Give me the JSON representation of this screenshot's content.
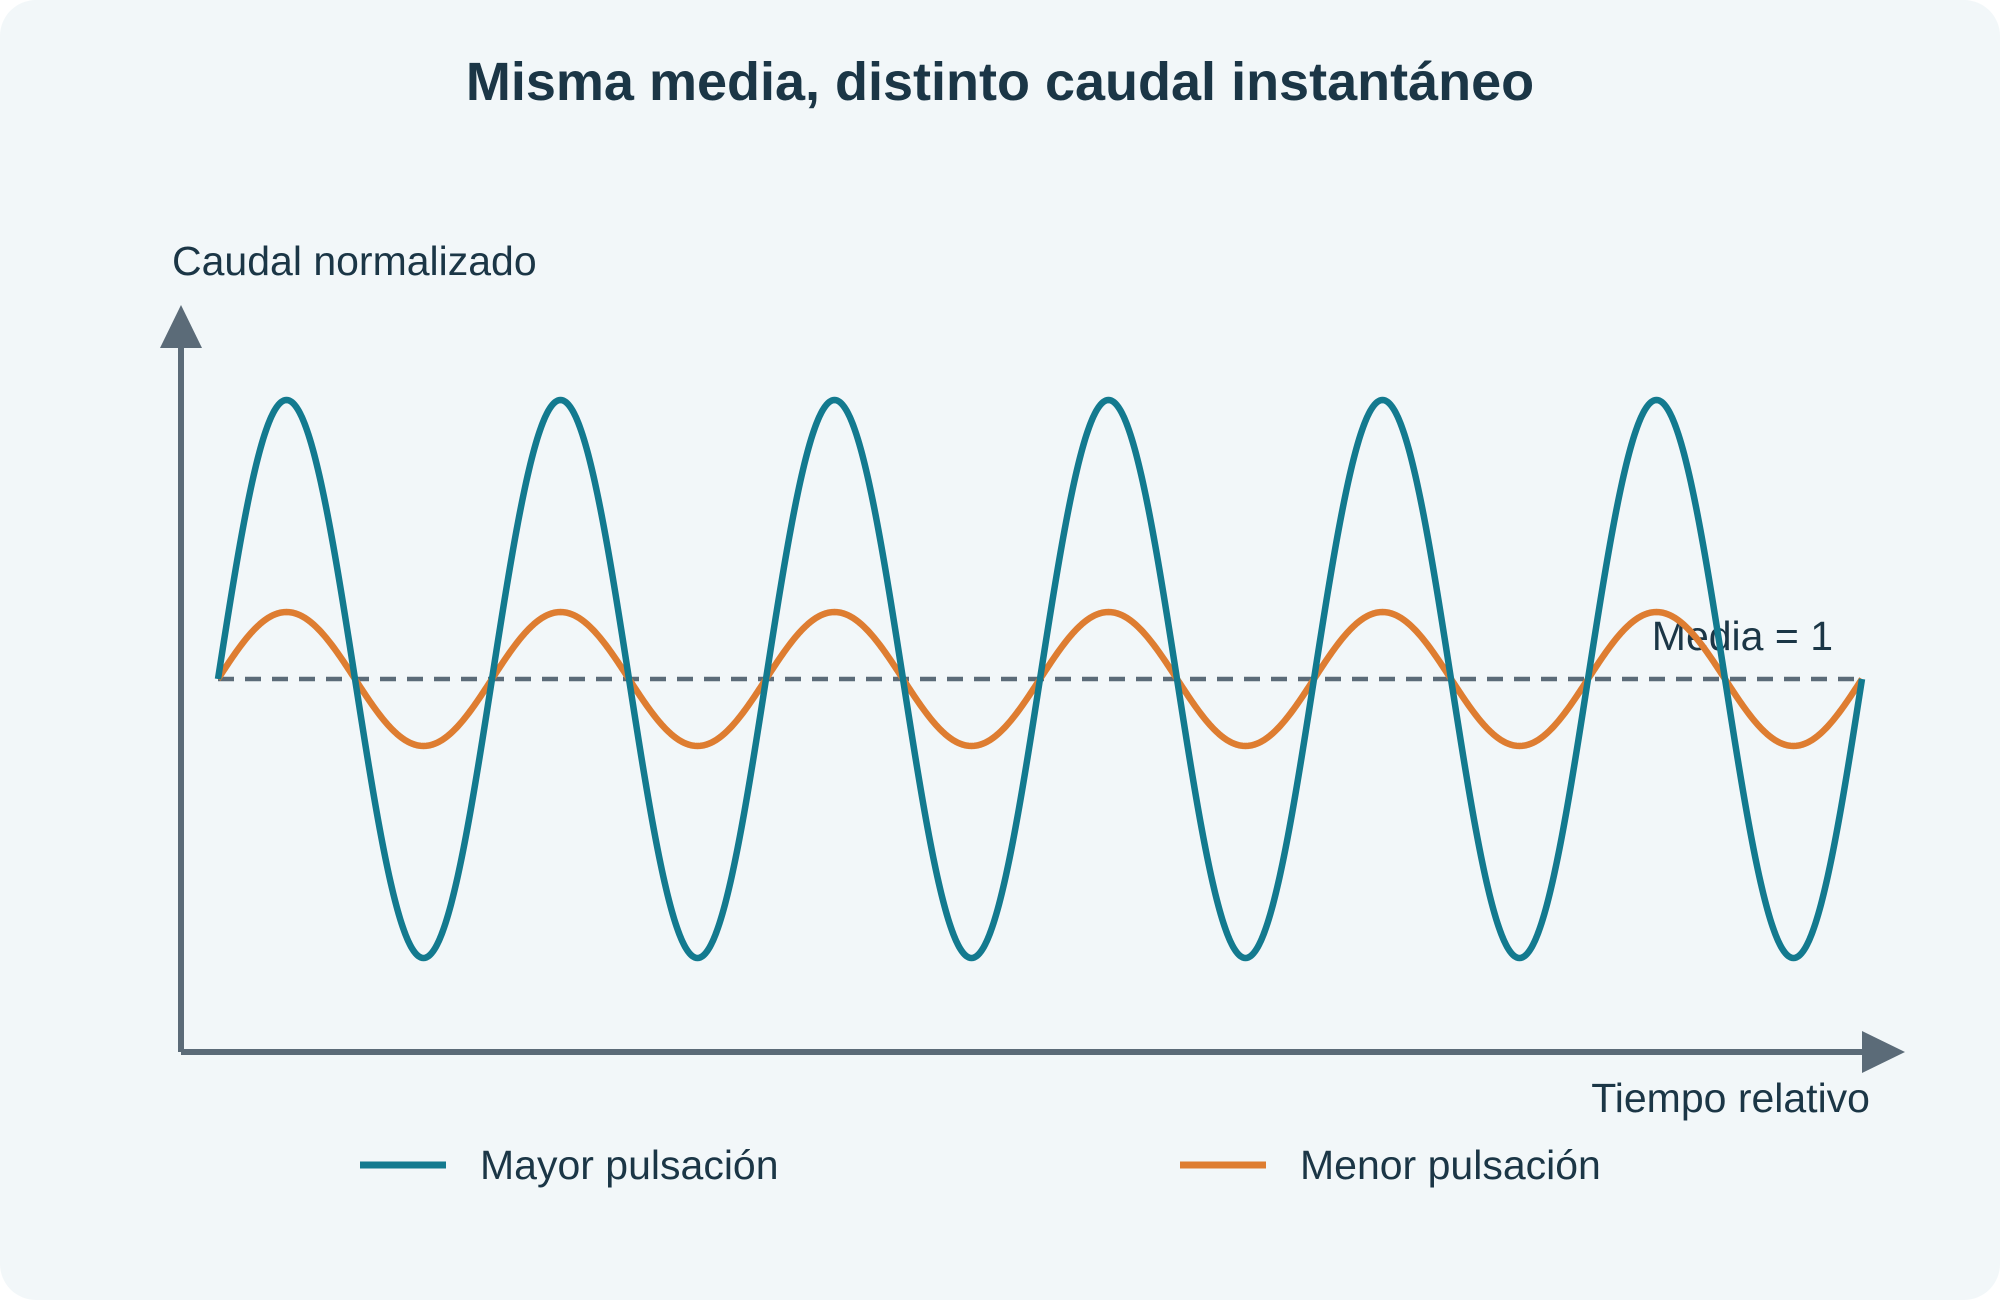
{
  "chart_data": {
    "type": "line",
    "title": "Misma media, distinto caudal instantáneo",
    "xlabel": "Tiempo relativo",
    "ylabel": "Caudal normalizado",
    "xlim": [
      0,
      6
    ],
    "ylim": [
      -0.4,
      2.1
    ],
    "grid": false,
    "legend_position": "bottom",
    "mean": {
      "value": 1,
      "label": "Media = 1"
    },
    "series": [
      {
        "name": "Mayor pulsación",
        "color": "#137a8f",
        "function": "sine",
        "mean": 1,
        "amplitude": 1,
        "cycles": 6,
        "x_start": 0,
        "x_end": 6
      },
      {
        "name": "Menor pulsación",
        "color": "#de7d31",
        "function": "sine",
        "mean": 1,
        "amplitude": 0.24,
        "cycles": 6,
        "x_start": 0,
        "x_end": 6
      }
    ],
    "colors": {
      "background": "#f2f7f9",
      "axis": "#5b6b78",
      "mean_line": "#5b6b78",
      "text": "#1b3646"
    }
  }
}
